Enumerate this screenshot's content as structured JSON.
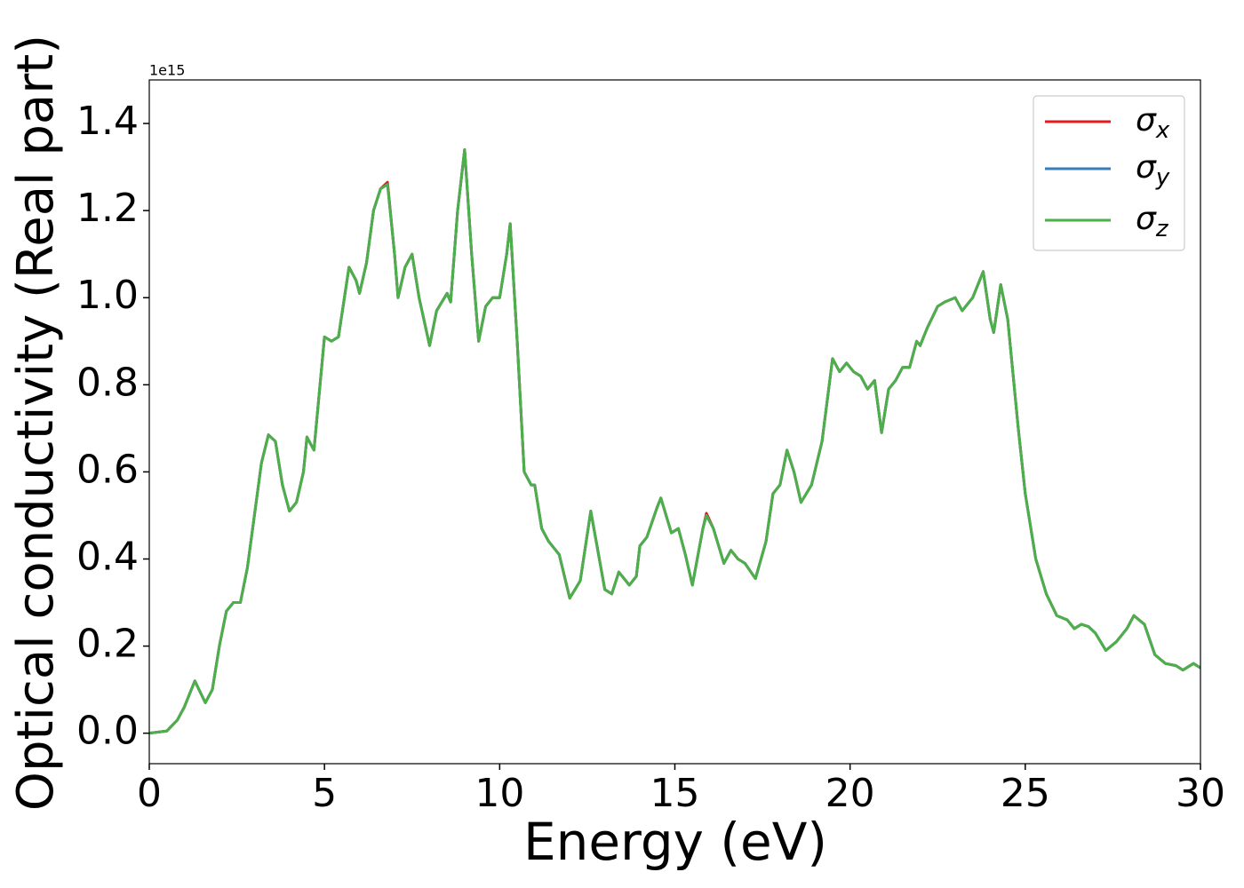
{
  "chart_data": {
    "type": "line",
    "xlabel": "Energy (eV)",
    "ylabel": "Optical conductivity (Real part)",
    "offset_label": "1e15",
    "x": [
      0,
      0.5,
      0.8,
      1.0,
      1.3,
      1.6,
      1.8,
      2.0,
      2.2,
      2.4,
      2.6,
      2.8,
      3.0,
      3.2,
      3.4,
      3.6,
      3.8,
      4.0,
      4.2,
      4.4,
      4.5,
      4.7,
      5.0,
      5.2,
      5.4,
      5.7,
      5.9,
      6.0,
      6.2,
      6.4,
      6.6,
      6.8,
      7.0,
      7.1,
      7.3,
      7.5,
      7.7,
      8.0,
      8.2,
      8.5,
      8.6,
      8.8,
      9.0,
      9.2,
      9.4,
      9.6,
      9.8,
      10.0,
      10.2,
      10.3,
      10.5,
      10.7,
      10.9,
      11.0,
      11.2,
      11.4,
      11.7,
      12.0,
      12.3,
      12.6,
      12.8,
      13.0,
      13.2,
      13.4,
      13.7,
      13.9,
      14.0,
      14.2,
      14.5,
      14.6,
      14.9,
      15.1,
      15.3,
      15.5,
      15.8,
      15.9,
      16.1,
      16.4,
      16.6,
      16.8,
      17.0,
      17.3,
      17.6,
      17.8,
      18.0,
      18.2,
      18.4,
      18.6,
      18.9,
      19.2,
      19.5,
      19.7,
      19.9,
      20.1,
      20.3,
      20.5,
      20.7,
      20.9,
      21.1,
      21.3,
      21.5,
      21.7,
      21.9,
      22.0,
      22.2,
      22.5,
      22.7,
      23.0,
      23.2,
      23.5,
      23.8,
      24.0,
      24.1,
      24.3,
      24.5,
      24.8,
      25.0,
      25.3,
      25.6,
      25.9,
      26.2,
      26.4,
      26.6,
      26.8,
      27.0,
      27.3,
      27.6,
      27.9,
      28.1,
      28.4,
      28.7,
      29.0,
      29.3,
      29.5,
      29.8,
      30.0
    ],
    "series": [
      {
        "name": "σx",
        "color": "#e41a1c",
        "values": [
          0,
          0.005,
          0.03,
          0.06,
          0.12,
          0.07,
          0.1,
          0.2,
          0.28,
          0.3,
          0.3,
          0.38,
          0.5,
          0.62,
          0.685,
          0.67,
          0.57,
          0.51,
          0.53,
          0.6,
          0.68,
          0.65,
          0.91,
          0.9,
          0.91,
          1.07,
          1.04,
          1.01,
          1.08,
          1.2,
          1.25,
          1.265,
          1.1,
          1.0,
          1.07,
          1.1,
          1.0,
          0.89,
          0.97,
          1.01,
          0.99,
          1.2,
          1.34,
          1.1,
          0.9,
          0.98,
          1.0,
          1.0,
          1.1,
          1.17,
          0.9,
          0.6,
          0.57,
          0.57,
          0.47,
          0.44,
          0.41,
          0.31,
          0.35,
          0.51,
          0.42,
          0.33,
          0.32,
          0.37,
          0.34,
          0.36,
          0.43,
          0.45,
          0.52,
          0.54,
          0.46,
          0.47,
          0.41,
          0.34,
          0.47,
          0.505,
          0.47,
          0.39,
          0.42,
          0.4,
          0.39,
          0.355,
          0.44,
          0.55,
          0.57,
          0.65,
          0.6,
          0.53,
          0.57,
          0.67,
          0.86,
          0.83,
          0.85,
          0.83,
          0.82,
          0.79,
          0.81,
          0.69,
          0.79,
          0.81,
          0.84,
          0.84,
          0.9,
          0.89,
          0.93,
          0.98,
          0.99,
          1.0,
          0.97,
          1.0,
          1.06,
          0.95,
          0.92,
          1.03,
          0.95,
          0.7,
          0.55,
          0.4,
          0.32,
          0.27,
          0.26,
          0.24,
          0.25,
          0.245,
          0.23,
          0.19,
          0.21,
          0.24,
          0.27,
          0.25,
          0.18,
          0.16,
          0.155,
          0.145,
          0.16,
          0.15
        ]
      },
      {
        "name": "σy",
        "color": "#377eb8",
        "values": [
          0,
          0.005,
          0.03,
          0.06,
          0.12,
          0.07,
          0.1,
          0.2,
          0.28,
          0.3,
          0.3,
          0.38,
          0.5,
          0.62,
          0.685,
          0.67,
          0.57,
          0.51,
          0.53,
          0.6,
          0.68,
          0.65,
          0.91,
          0.9,
          0.91,
          1.07,
          1.04,
          1.01,
          1.08,
          1.2,
          1.25,
          1.26,
          1.1,
          1.0,
          1.07,
          1.1,
          1.0,
          0.89,
          0.97,
          1.01,
          0.99,
          1.2,
          1.34,
          1.1,
          0.9,
          0.98,
          1.0,
          1.0,
          1.1,
          1.17,
          0.9,
          0.6,
          0.57,
          0.57,
          0.47,
          0.44,
          0.41,
          0.31,
          0.35,
          0.51,
          0.42,
          0.33,
          0.32,
          0.37,
          0.34,
          0.36,
          0.43,
          0.45,
          0.52,
          0.54,
          0.46,
          0.47,
          0.41,
          0.34,
          0.47,
          0.5,
          0.47,
          0.39,
          0.42,
          0.4,
          0.39,
          0.355,
          0.44,
          0.55,
          0.57,
          0.65,
          0.6,
          0.53,
          0.57,
          0.67,
          0.86,
          0.83,
          0.85,
          0.83,
          0.82,
          0.79,
          0.81,
          0.69,
          0.79,
          0.81,
          0.84,
          0.84,
          0.9,
          0.89,
          0.93,
          0.98,
          0.99,
          1.0,
          0.97,
          1.0,
          1.06,
          0.95,
          0.92,
          1.03,
          0.95,
          0.7,
          0.55,
          0.4,
          0.32,
          0.27,
          0.26,
          0.24,
          0.25,
          0.245,
          0.23,
          0.19,
          0.21,
          0.24,
          0.27,
          0.25,
          0.18,
          0.16,
          0.155,
          0.145,
          0.16,
          0.15
        ]
      },
      {
        "name": "σz",
        "color": "#4daf4a",
        "values": [
          0,
          0.005,
          0.03,
          0.06,
          0.12,
          0.07,
          0.1,
          0.2,
          0.28,
          0.3,
          0.3,
          0.38,
          0.5,
          0.62,
          0.685,
          0.67,
          0.57,
          0.51,
          0.53,
          0.6,
          0.68,
          0.65,
          0.91,
          0.9,
          0.91,
          1.07,
          1.04,
          1.01,
          1.08,
          1.2,
          1.25,
          1.26,
          1.1,
          1.0,
          1.07,
          1.1,
          1.0,
          0.89,
          0.97,
          1.01,
          0.99,
          1.2,
          1.34,
          1.1,
          0.9,
          0.98,
          1.0,
          1.0,
          1.1,
          1.17,
          0.9,
          0.6,
          0.57,
          0.57,
          0.47,
          0.44,
          0.41,
          0.31,
          0.35,
          0.51,
          0.42,
          0.33,
          0.32,
          0.37,
          0.34,
          0.36,
          0.43,
          0.45,
          0.52,
          0.54,
          0.46,
          0.47,
          0.41,
          0.34,
          0.47,
          0.5,
          0.47,
          0.39,
          0.42,
          0.4,
          0.39,
          0.355,
          0.44,
          0.55,
          0.57,
          0.65,
          0.6,
          0.53,
          0.57,
          0.67,
          0.86,
          0.83,
          0.85,
          0.83,
          0.82,
          0.79,
          0.81,
          0.69,
          0.79,
          0.81,
          0.84,
          0.84,
          0.9,
          0.89,
          0.93,
          0.98,
          0.99,
          1.0,
          0.97,
          1.0,
          1.06,
          0.95,
          0.92,
          1.03,
          0.95,
          0.7,
          0.55,
          0.4,
          0.32,
          0.27,
          0.26,
          0.24,
          0.25,
          0.245,
          0.23,
          0.19,
          0.21,
          0.24,
          0.27,
          0.25,
          0.18,
          0.16,
          0.155,
          0.145,
          0.16,
          0.15
        ]
      }
    ],
    "xlim": [
      0,
      30
    ],
    "xticks": [
      0,
      5,
      10,
      15,
      20,
      25,
      30
    ],
    "ylim": [
      -0.07,
      1.5
    ],
    "yticks": [
      {
        "value": 0,
        "label": "0.0"
      },
      0.2,
      0.4,
      0.6,
      0.8,
      {
        "value": 1,
        "label": "1.0"
      },
      1.2,
      1.4
    ],
    "grid": false,
    "legend": "upper right"
  }
}
